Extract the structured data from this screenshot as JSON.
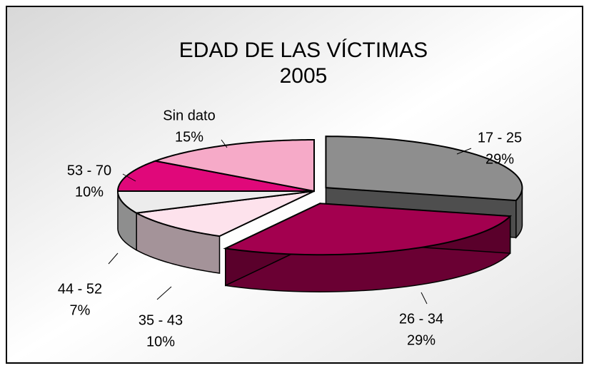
{
  "chart_data": {
    "type": "pie",
    "title": "EDAD DE LAS VÍCTIMAS",
    "subtitle": "2005",
    "categories": [
      "17 - 25",
      "26 - 34",
      "35 - 43",
      "44 - 52",
      "53 - 70",
      "Sin dato"
    ],
    "values": [
      29,
      29,
      10,
      7,
      10,
      15
    ],
    "value_labels": [
      "29%",
      "29%",
      "10%",
      "7%",
      "10%",
      "15%"
    ],
    "colors": [
      "#8e8e8e",
      "#a3004f",
      "#fde2ec",
      "#ececec",
      "#e0087a",
      "#f6aac8"
    ]
  }
}
